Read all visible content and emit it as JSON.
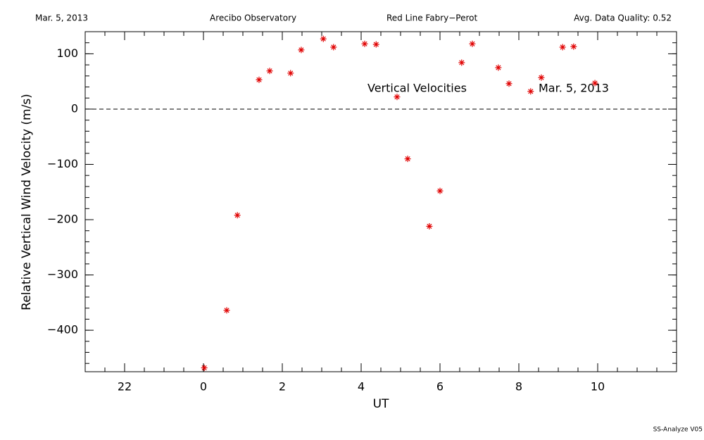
{
  "chart_data": {
    "type": "scatter",
    "header": [
      "Mar. 5, 2013",
      "Arecibo Observatory",
      "Red Line Fabry−Perot",
      "Avg. Data Quality: 0.52"
    ],
    "xlabel": "UT",
    "ylabel": "Relative Vertical Wind Velocity (m/s)",
    "annotations": [
      "Vertical Velocities",
      "Mar. 5, 2013"
    ],
    "footer": "SS-Analyze V05",
    "color": "#e00000",
    "reference_line": 0,
    "xlim": [
      -3,
      12
    ],
    "ylim": [
      -475,
      140
    ],
    "xticks": [
      {
        "value": -2,
        "label": "22"
      },
      0,
      2,
      4,
      6,
      8,
      10
    ],
    "yticks": [
      {
        "value": -400,
        "label": "−400"
      },
      {
        "value": -300,
        "label": "−300"
      },
      {
        "value": -200,
        "label": "−200"
      },
      {
        "value": -100,
        "label": "−100"
      },
      0,
      100
    ],
    "x": [
      0.02,
      0.59,
      0.86,
      1.41,
      1.68,
      2.21,
      2.48,
      3.04,
      3.3,
      4.09,
      4.38,
      4.91,
      5.18,
      5.73,
      6.0,
      6.55,
      6.82,
      7.48,
      7.75,
      8.3,
      8.57,
      9.11,
      9.39,
      9.93
    ],
    "values": [
      -468,
      -364,
      -192,
      53,
      69,
      65,
      107,
      127,
      112,
      118,
      117,
      22,
      -90,
      -212,
      -148,
      84,
      118,
      75,
      46,
      32,
      57,
      112,
      113,
      47
    ]
  }
}
